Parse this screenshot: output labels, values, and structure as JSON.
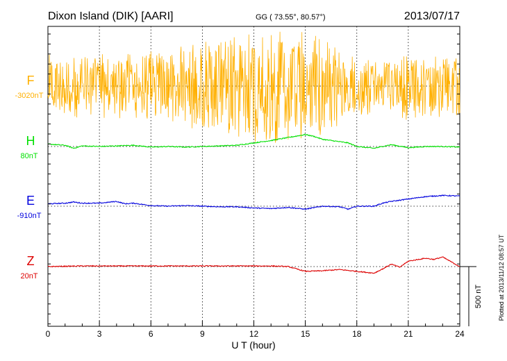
{
  "header": {
    "station": "Dixon Island (DIK)  [AARI]",
    "coords": "GG ( 73.55°,  80.57°)",
    "date": "2013/07/17"
  },
  "footer": {
    "plotted": "Plotted at 2013/11/12 08:57 UT"
  },
  "chart_data": {
    "type": "line",
    "title": "Dixon Island (DIK)  [AARI]",
    "xlabel": "U T (hour)",
    "xlim": [
      0,
      24
    ],
    "x_ticks": [
      0,
      3,
      6,
      9,
      12,
      15,
      18,
      21,
      24
    ],
    "x_tick_labels": [
      "0",
      "3",
      "6",
      "9",
      "12",
      "15",
      "18",
      "21",
      "24"
    ],
    "scale_bar_label": "500 nT",
    "scale_bar_nT": 500,
    "grid": true,
    "series": [
      {
        "name": "F",
        "baseline_label": "-3020nT",
        "color": "#ffb000",
        "note": "Highly noisy trace oscillating strongly about baseline throughout the day (spikes up to approx +/-500 nT, strongest near 15 UT)",
        "noise_amplitude_nT": 480,
        "x": [
          0,
          2,
          4,
          6,
          8,
          10,
          12,
          14,
          15,
          16,
          18,
          20,
          21,
          22,
          24
        ],
        "values": [
          0,
          0,
          0,
          0,
          0,
          0,
          0,
          0,
          0,
          0,
          0,
          0,
          0,
          0,
          0
        ]
      },
      {
        "name": "H",
        "baseline_label": "80nT",
        "color": "#00e000",
        "x": [
          0,
          1,
          1.5,
          2,
          3,
          4,
          5,
          6,
          7,
          8,
          9,
          10,
          11,
          12,
          13,
          14,
          15,
          15.5,
          16,
          16.5,
          17,
          17.5,
          18,
          19,
          20,
          21,
          22,
          23,
          24
        ],
        "values": [
          20,
          10,
          -15,
          5,
          0,
          5,
          10,
          -5,
          0,
          -5,
          0,
          5,
          10,
          30,
          50,
          75,
          100,
          85,
          60,
          50,
          40,
          30,
          0,
          -15,
          15,
          -10,
          0,
          0,
          -5
        ]
      },
      {
        "name": "E",
        "baseline_label": "-910nT",
        "color": "#0000dd",
        "x": [
          0,
          1,
          1.5,
          2,
          3,
          4,
          4.5,
          5,
          6,
          7,
          8,
          9,
          10,
          11,
          12,
          13,
          14,
          15,
          16,
          17,
          17.5,
          18,
          19,
          19.5,
          20,
          21,
          22,
          23,
          24
        ],
        "values": [
          20,
          25,
          35,
          25,
          25,
          40,
          20,
          25,
          5,
          0,
          5,
          0,
          -5,
          -5,
          -15,
          -20,
          -10,
          -25,
          0,
          -5,
          -25,
          0,
          0,
          25,
          40,
          60,
          80,
          90,
          85
        ]
      },
      {
        "name": "Z",
        "baseline_label": "20nT",
        "color": "#dd0000",
        "x": [
          0,
          2,
          4,
          6,
          8,
          10,
          12,
          13,
          14,
          14.5,
          15,
          16,
          17,
          18,
          19,
          19.5,
          20,
          20.5,
          21,
          22,
          22.5,
          23,
          24
        ],
        "values": [
          0,
          5,
          5,
          5,
          5,
          5,
          5,
          5,
          0,
          -20,
          -40,
          -35,
          -25,
          -40,
          -55,
          -20,
          20,
          -5,
          45,
          70,
          60,
          80,
          0
        ]
      }
    ]
  }
}
